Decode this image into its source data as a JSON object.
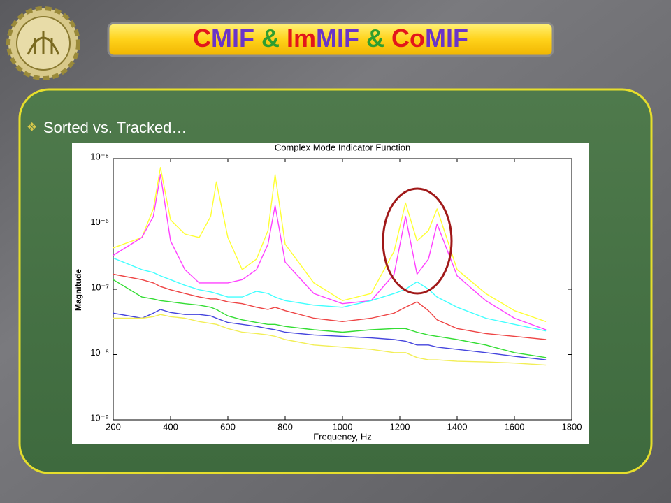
{
  "slide": {
    "title_parts": [
      {
        "text": "C",
        "color": "#e3161b"
      },
      {
        "text": "MIF",
        "color": "#6a35c8"
      },
      {
        "text": " & ",
        "color": "#2f9e2f"
      },
      {
        "text": "Im",
        "color": "#e3161b"
      },
      {
        "text": "MIF",
        "color": "#6a35c8"
      },
      {
        "text": " & ",
        "color": "#2f9e2f"
      },
      {
        "text": "Co",
        "color": "#e3161b"
      },
      {
        "text": "MIF",
        "color": "#6a35c8"
      }
    ],
    "bullet": "Sorted vs. Tracked…"
  },
  "chart_data": {
    "type": "line",
    "title": "Complex Mode Indicator Function",
    "xlabel": "Frequency, Hz",
    "ylabel": "Magnitude",
    "yscale": "log",
    "xlim": [
      200,
      1800
    ],
    "xticks": [
      200,
      400,
      600,
      800,
      1000,
      1200,
      1400,
      1600,
      1800
    ],
    "ylim": [
      1e-09,
      1e-05
    ],
    "yticks": [
      {
        "value": 1e-09,
        "label": "10⁻⁹"
      },
      {
        "value": 1e-08,
        "label": "10⁻⁸"
      },
      {
        "value": 1e-07,
        "label": "10⁻⁷"
      },
      {
        "value": 1e-06,
        "label": "10⁻⁶"
      },
      {
        "value": 1e-05,
        "label": "10⁻⁵"
      }
    ],
    "x": [
      200,
      300,
      340,
      365,
      400,
      450,
      500,
      540,
      560,
      600,
      650,
      700,
      740,
      765,
      800,
      900,
      1000,
      1100,
      1180,
      1220,
      1260,
      1300,
      1330,
      1400,
      1500,
      1600,
      1710
    ],
    "series": [
      {
        "color": "#ffff33",
        "values": [
          4.3e-07,
          6.2e-07,
          1.7e-06,
          7.3e-06,
          1.15e-06,
          7e-07,
          6.2e-07,
          1.3e-06,
          4.4e-06,
          6.2e-07,
          2e-07,
          2.9e-07,
          7.9e-07,
          5.7e-06,
          4.9e-07,
          1.25e-07,
          6.7e-08,
          8.6e-08,
          3.8e-07,
          2.1e-06,
          5.5e-07,
          7.9e-07,
          1.7e-06,
          2e-07,
          8.6e-08,
          4.7e-08,
          3.2e-08
        ]
      },
      {
        "color": "#ff40ff",
        "values": [
          3.3e-07,
          6.2e-07,
          1.3e-06,
          5.7e-06,
          5.5e-07,
          2e-07,
          1.25e-07,
          1.25e-07,
          1.25e-07,
          1.25e-07,
          1.4e-07,
          2e-07,
          4.9e-07,
          1.9e-06,
          2.6e-07,
          8.6e-08,
          6e-08,
          6.7e-08,
          1.7e-07,
          1.3e-06,
          1.7e-07,
          2.9e-07,
          1e-06,
          1.6e-07,
          6.7e-08,
          3.6e-08,
          2.4e-08
        ]
      },
      {
        "color": "#40ffff",
        "values": [
          3e-07,
          2e-07,
          1.8e-07,
          1.6e-07,
          1.4e-07,
          1.15e-07,
          9.8e-08,
          9.1e-08,
          8.6e-08,
          7.6e-08,
          7.6e-08,
          9.3e-08,
          8.6e-08,
          7.6e-08,
          6.7e-08,
          5.7e-08,
          5.3e-08,
          6.7e-08,
          8.6e-08,
          1e-07,
          1.3e-07,
          1e-07,
          7.6e-08,
          5.3e-08,
          3.6e-08,
          2.9e-08,
          2.3e-08
        ]
      },
      {
        "color": "#ee4444",
        "values": [
          1.7e-07,
          1.4e-07,
          1.25e-07,
          1.1e-07,
          9.8e-08,
          8.6e-08,
          7.6e-08,
          7.1e-08,
          7.1e-08,
          6.4e-08,
          6e-08,
          5.3e-08,
          4.9e-08,
          5.3e-08,
          4.7e-08,
          3.6e-08,
          3.2e-08,
          3.6e-08,
          4.3e-08,
          5.3e-08,
          6.4e-08,
          4.7e-08,
          3.4e-08,
          2.5e-08,
          2.1e-08,
          1.9e-08,
          1.7e-08
        ]
      },
      {
        "color": "#33dd33",
        "values": [
          1.4e-07,
          7.6e-08,
          7.1e-08,
          6.7e-08,
          6.4e-08,
          6e-08,
          5.7e-08,
          5.3e-08,
          4.9e-08,
          3.9e-08,
          3.4e-08,
          3.1e-08,
          2.9e-08,
          2.9e-08,
          2.7e-08,
          2.4e-08,
          2.2e-08,
          2.4e-08,
          2.5e-08,
          2.5e-08,
          2.2e-08,
          2e-08,
          1.9e-08,
          1.7e-08,
          1.4e-08,
          1.07e-08,
          9e-09
        ]
      },
      {
        "color": "#4444dd",
        "values": [
          4.3e-08,
          3.6e-08,
          4.3e-08,
          4.9e-08,
          4.4e-08,
          4.1e-08,
          4.1e-08,
          3.9e-08,
          3.6e-08,
          3.1e-08,
          2.9e-08,
          2.7e-08,
          2.5e-08,
          2.4e-08,
          2.2e-08,
          2e-08,
          1.9e-08,
          1.8e-08,
          1.7e-08,
          1.6e-08,
          1.4e-08,
          1.4e-08,
          1.3e-08,
          1.2e-08,
          1.07e-08,
          9.4e-09,
          8.3e-09
        ]
      },
      {
        "color": "#f2ee55",
        "values": [
          3.6e-08,
          3.6e-08,
          3.8e-08,
          4.1e-08,
          3.8e-08,
          3.6e-08,
          3.2e-08,
          3e-08,
          2.9e-08,
          2.5e-08,
          2.2e-08,
          2.1e-08,
          2e-08,
          1.9e-08,
          1.7e-08,
          1.4e-08,
          1.3e-08,
          1.2e-08,
          1.07e-08,
          1.07e-08,
          9e-09,
          8.3e-09,
          8.3e-09,
          7.9e-09,
          7.7e-09,
          7.4e-09,
          6.9e-09
        ]
      }
    ]
  }
}
